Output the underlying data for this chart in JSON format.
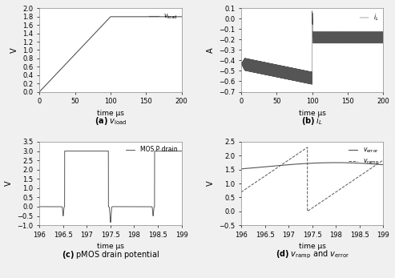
{
  "subplot_a": {
    "xlabel": "time μs",
    "ylabel": "V",
    "xlim": [
      0,
      200
    ],
    "ylim": [
      0,
      2.0
    ],
    "yticks": [
      0,
      0.2,
      0.4,
      0.6,
      0.8,
      1.0,
      1.2,
      1.4,
      1.6,
      1.8,
      2.0
    ],
    "xticks": [
      0,
      50,
      100,
      150,
      200
    ],
    "ramp_end": 100,
    "ramp_value": 1.8,
    "line_color": "#555555"
  },
  "subplot_b": {
    "xlabel": "time μs",
    "ylabel": "A",
    "xlim": [
      0,
      200
    ],
    "ylim": [
      -0.7,
      0.1
    ],
    "yticks": [
      -0.7,
      -0.6,
      -0.5,
      -0.4,
      -0.3,
      -0.2,
      -0.1,
      0.0,
      0.1
    ],
    "xticks": [
      0,
      50,
      100,
      150,
      200
    ],
    "line_color": "#555555",
    "osc_freq": 2.0,
    "phase1_center_start": -0.43,
    "phase1_center_end": -0.57,
    "phase1_amp_start": 0.06,
    "phase1_amp_end": 0.06,
    "phase2_center_start": -0.18,
    "phase2_center_end": -0.18,
    "phase2_amp": 0.06
  },
  "subplot_c": {
    "xlabel": "time μs",
    "ylabel": "V",
    "xlim": [
      196,
      199
    ],
    "ylim": [
      -1,
      3.5
    ],
    "yticks": [
      -1.0,
      -0.5,
      0.0,
      0.5,
      1.0,
      1.5,
      2.0,
      2.5,
      3.0,
      3.5
    ],
    "xticks": [
      196,
      196.5,
      197,
      197.5,
      198,
      198.5,
      199
    ],
    "line_color": "#555555",
    "high_level": 3.0,
    "low_level": 0.0,
    "spike_low": -0.85,
    "period": 1.0,
    "duty_on_start": 0.5,
    "duty_on_end": 1.5
  },
  "subplot_d": {
    "xlabel": "time μs",
    "ylabel": "V",
    "xlim": [
      196,
      199
    ],
    "ylim": [
      -0.5,
      2.5
    ],
    "yticks": [
      -0.5,
      0.0,
      0.5,
      1.0,
      1.5,
      2.0,
      2.5
    ],
    "xticks": [
      196,
      196.5,
      197,
      197.5,
      198,
      198.5,
      199
    ],
    "ramp_color": "#555555",
    "error_color": "#555555",
    "ramp_period": 2.0,
    "ramp_lo": 0.0,
    "ramp_hi": 2.3
  },
  "background_color": "#f0f0f0",
  "plot_bg": "#ffffff",
  "line_color": "#555555"
}
